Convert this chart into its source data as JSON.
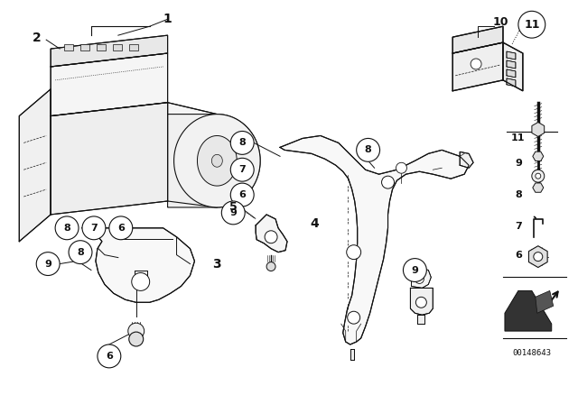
{
  "bg_color": "#ffffff",
  "line_color": "#111111",
  "part_id": "00148643",
  "circle_r": 0.022,
  "fig_w": 6.4,
  "fig_h": 4.48
}
